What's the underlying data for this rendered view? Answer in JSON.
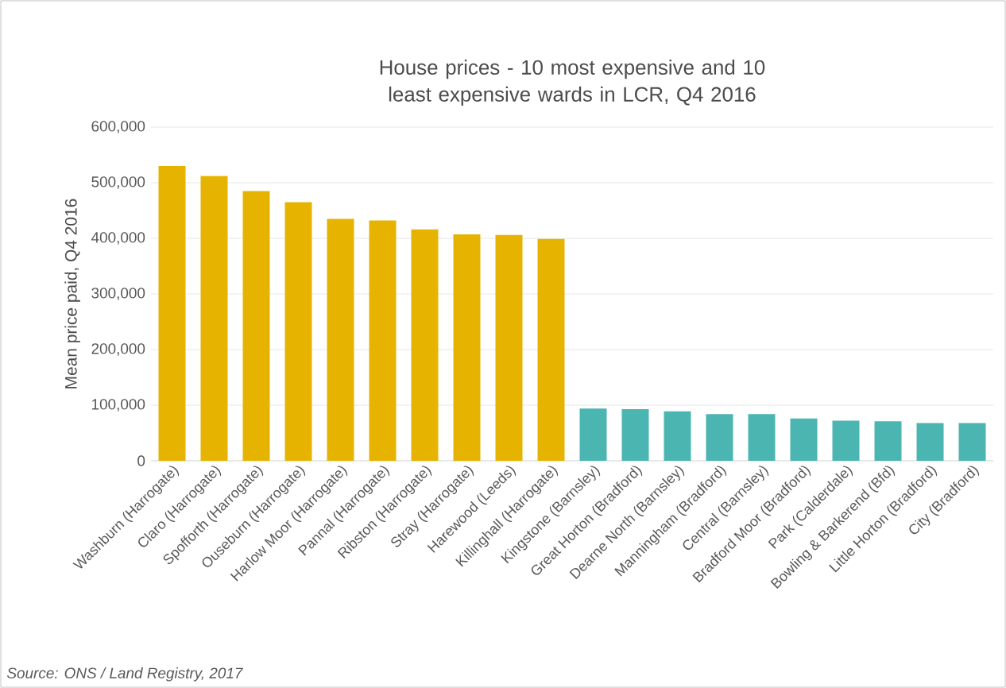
{
  "chart_data": {
    "type": "bar",
    "title": "House prices - 10 most expensive and 10 least expensive wards in LCR, Q4 2016",
    "ylabel": "Mean price paid, Q4 2016",
    "categories": [
      "Washburn (Harrogate)",
      "Claro (Harrogate)",
      "Spofforth (Harrogate)",
      "Ouseburn (Harrogate)",
      "Harlow Moor (Harrogate)",
      "Pannal (Harrogate)",
      "Ribston (Harrogate)",
      "Stray (Harrogate)",
      "Harewood (Leeds)",
      "Killinghall (Harrogate)",
      "Kingstone (Barnsley)",
      "Great Horton (Bradford)",
      "Dearne North (Barnsley)",
      "Manningham (Bradford)",
      "Central (Barnsley)",
      "Bradford Moor (Bradford)",
      "Park (Calderdale)",
      "Bowling & Barkerend (Bfd)",
      "Little Horton (Bradford)",
      "City (Bradford)"
    ],
    "values": [
      530000,
      512000,
      485000,
      465000,
      435000,
      432000,
      416000,
      407000,
      406000,
      399000,
      94000,
      93000,
      89000,
      84000,
      84000,
      76000,
      72000,
      71000,
      68000,
      68000
    ],
    "colors": [
      "#e6b400",
      "#e6b400",
      "#e6b400",
      "#e6b400",
      "#e6b400",
      "#e6b400",
      "#e6b400",
      "#e6b400",
      "#e6b400",
      "#e6b400",
      "#4bb5b1",
      "#4bb5b1",
      "#4bb5b1",
      "#4bb5b1",
      "#4bb5b1",
      "#4bb5b1",
      "#4bb5b1",
      "#4bb5b1",
      "#4bb5b1",
      "#4bb5b1"
    ],
    "ylim": [
      0,
      600000
    ],
    "yticks": [
      0,
      {
        "value": 100000,
        "label": "100,000"
      },
      {
        "value": 200000,
        "label": "200,000"
      },
      {
        "value": 300000,
        "label": "300,000"
      },
      {
        "value": 400000,
        "label": "400,000"
      },
      {
        "value": 500000,
        "label": "500,000"
      },
      {
        "value": 600000,
        "label": "600,000"
      }
    ],
    "grid": "y",
    "annotations": [
      "Source: ONS / Land Registry, 2017"
    ]
  }
}
